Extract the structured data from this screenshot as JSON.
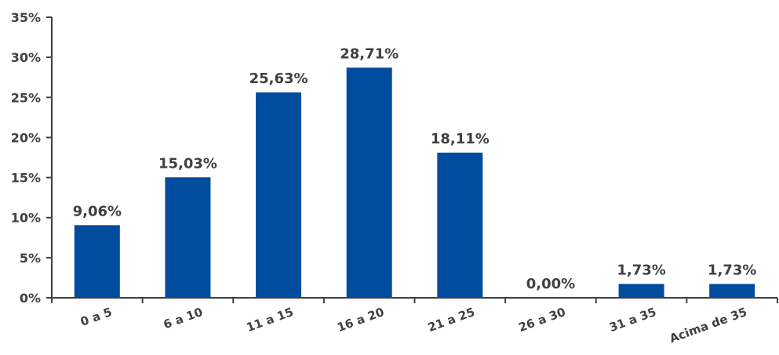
{
  "chart_data": {
    "type": "bar",
    "title": "",
    "xlabel": "",
    "ylabel": "",
    "categories": [
      "0 a 5",
      "6 a 10",
      "11 a 15",
      "16 a 20",
      "21 a 25",
      "26 a 30",
      "31 a 35",
      "Acima de 35"
    ],
    "values": [
      9.06,
      15.03,
      25.63,
      28.71,
      18.11,
      0.0,
      1.73,
      1.73
    ],
    "data_labels": [
      "9,06%",
      "15,03%",
      "25,63%",
      "28,71%",
      "18,11%",
      "0,00%",
      "1,73%",
      "1,73%"
    ],
    "ylim": [
      0,
      35
    ],
    "y_ticks": [
      0,
      5,
      10,
      15,
      20,
      25,
      30,
      35
    ],
    "y_tick_labels": [
      "0%",
      "5%",
      "10%",
      "15%",
      "20%",
      "25%",
      "30%",
      "35%"
    ],
    "grid": false,
    "legend": "none",
    "colors": {
      "bar": "#004C9E",
      "axis": "#404040",
      "text": "#404040"
    }
  }
}
